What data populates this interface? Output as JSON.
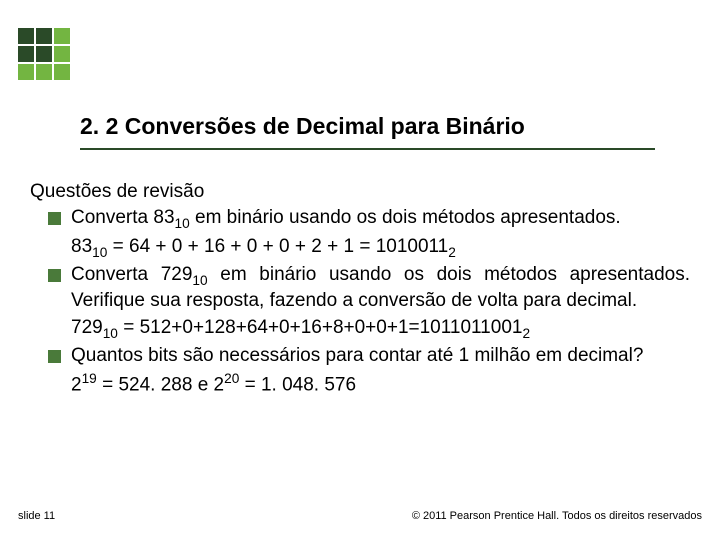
{
  "logo": {
    "colors": [
      "#2a4a28",
      "#2a4a28",
      "#73b541",
      "#2a4a28",
      "#2a4a28",
      "#73b541",
      "#73b541",
      "#73b541",
      "#73b541"
    ]
  },
  "title": "2. 2 Conversões de Decimal para Binário",
  "heading": "Questões de revisão",
  "bullets": [
    {
      "lead": "Converta 83",
      "sub1": "10",
      "mid1": " em binário usando os dois métodos apresentados.",
      "line2a": "83",
      "line2sub1": "10",
      "line2b": " = 64 + 0 + 16 + 0 + 0 + 2 + 1 = 1010011",
      "line2sub2": "2"
    },
    {
      "lead": "Converta 729",
      "sub1": "10",
      "mid1": " em binário usando os dois métodos apresentados. Verifique sua resposta, fazendo a conversão de volta para decimal.",
      "line2a": "729",
      "line2sub1": "10",
      "line2b": " = 512+0+128+64+0+16+8+0+0+1=1011011001",
      "line2sub2": "2"
    },
    {
      "lead": "Quantos bits são necessários para contar até 1 milhão em decimal?",
      "line2pre": "2",
      "line2sup1": "19",
      "line2mid": " = 524. 288 e 2",
      "line2sup2": "20",
      "line2end": " = 1. 048. 576"
    }
  ],
  "footer": {
    "left": "slide 11",
    "right": "© 2011 Pearson Prentice Hall. Todos os direitos reservados"
  },
  "styling": {
    "title_fontsize": 23,
    "body_fontsize": 19,
    "footer_fontsize": 11,
    "bullet_marker_color": "#4a7a3a",
    "rule_color": "#2a4a28",
    "background": "#ffffff"
  }
}
